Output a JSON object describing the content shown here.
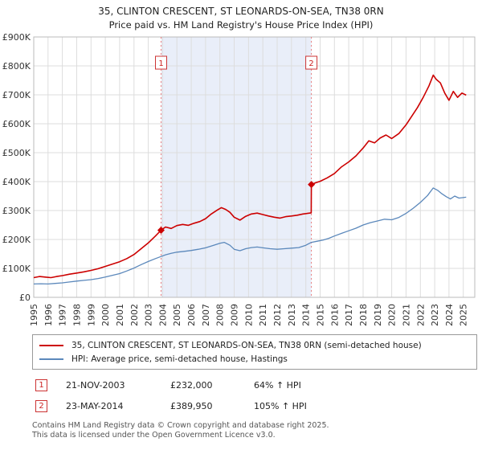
{
  "header": {
    "title": "35, CLINTON CRESCENT, ST LEONARDS-ON-SEA, TN38 0RN",
    "subtitle": "Price paid vs. HM Land Registry's House Price Index (HPI)"
  },
  "chart_data": {
    "type": "line",
    "title": "35, CLINTON CRESCENT, ST LEONARDS-ON-SEA, TN38 0RN — Price paid vs. HPI",
    "xlabel": "",
    "ylabel": "",
    "xlim": [
      1995,
      2025.8
    ],
    "ylim": [
      0,
      900000
    ],
    "grid": true,
    "legend_position": "bottom",
    "x_ticks": [
      1995,
      1996,
      1997,
      1998,
      1999,
      2000,
      2001,
      2002,
      2003,
      2004,
      2005,
      2006,
      2007,
      2008,
      2009,
      2010,
      2011,
      2012,
      2013,
      2014,
      2015,
      2016,
      2017,
      2018,
      2019,
      2020,
      2021,
      2022,
      2023,
      2024,
      2025
    ],
    "ytick_values": [
      0,
      100000,
      200000,
      300000,
      400000,
      500000,
      600000,
      700000,
      800000,
      900000
    ],
    "ytick_labels": [
      "£0",
      "£100K",
      "£200K",
      "£300K",
      "£400K",
      "£500K",
      "£600K",
      "£700K",
      "£800K",
      "£900K"
    ],
    "shaded_region": {
      "from": 2003.89,
      "to": 2014.39,
      "color": "#e9eef9"
    },
    "grid_color": "#dddddd",
    "border_color": "#bbbbbb",
    "marker_line_color": "#e87e7e",
    "series": [
      {
        "name": "35, CLINTON CRESCENT, ST LEONARDS-ON-SEA, TN38 0RN (semi-detached house)",
        "color": "#cc0000",
        "width": 1.6,
        "points": [
          [
            1995,
            68000
          ],
          [
            1995.4,
            72000
          ],
          [
            1995.8,
            70000
          ],
          [
            1996.2,
            68000
          ],
          [
            1996.6,
            72000
          ],
          [
            1997,
            75000
          ],
          [
            1997.5,
            80000
          ],
          [
            1998,
            84000
          ],
          [
            1998.5,
            88000
          ],
          [
            1999,
            93000
          ],
          [
            1999.5,
            99000
          ],
          [
            2000,
            107000
          ],
          [
            2000.5,
            115000
          ],
          [
            2001,
            123000
          ],
          [
            2001.5,
            134000
          ],
          [
            2002,
            148000
          ],
          [
            2002.5,
            168000
          ],
          [
            2003,
            188000
          ],
          [
            2003.5,
            212000
          ],
          [
            2003.89,
            232000
          ],
          [
            2004.2,
            243000
          ],
          [
            2004.6,
            238000
          ],
          [
            2005,
            248000
          ],
          [
            2005.4,
            252000
          ],
          [
            2005.8,
            249000
          ],
          [
            2006.2,
            256000
          ],
          [
            2006.6,
            262000
          ],
          [
            2007,
            272000
          ],
          [
            2007.4,
            288000
          ],
          [
            2007.8,
            301000
          ],
          [
            2008.1,
            310000
          ],
          [
            2008.4,
            304000
          ],
          [
            2008.7,
            294000
          ],
          [
            2009,
            277000
          ],
          [
            2009.4,
            267000
          ],
          [
            2009.8,
            280000
          ],
          [
            2010.2,
            288000
          ],
          [
            2010.6,
            291000
          ],
          [
            2011,
            286000
          ],
          [
            2011.4,
            281000
          ],
          [
            2011.8,
            277000
          ],
          [
            2012.2,
            274000
          ],
          [
            2012.6,
            279000
          ],
          [
            2013,
            281000
          ],
          [
            2013.4,
            284000
          ],
          [
            2013.8,
            288000
          ],
          [
            2014.1,
            290000
          ],
          [
            2014.38,
            292000
          ],
          [
            2014.39,
            389950
          ],
          [
            2014.7,
            396000
          ],
          [
            2015,
            401000
          ],
          [
            2015.5,
            413000
          ],
          [
            2016,
            428000
          ],
          [
            2016.5,
            451000
          ],
          [
            2017,
            468000
          ],
          [
            2017.5,
            489000
          ],
          [
            2018,
            516000
          ],
          [
            2018.4,
            541000
          ],
          [
            2018.8,
            534000
          ],
          [
            2019.2,
            551000
          ],
          [
            2019.6,
            561000
          ],
          [
            2020,
            549000
          ],
          [
            2020.5,
            566000
          ],
          [
            2021,
            596000
          ],
          [
            2021.4,
            626000
          ],
          [
            2021.8,
            656000
          ],
          [
            2022.2,
            691000
          ],
          [
            2022.6,
            731000
          ],
          [
            2022.9,
            768000
          ],
          [
            2023.1,
            754000
          ],
          [
            2023.4,
            741000
          ],
          [
            2023.7,
            706000
          ],
          [
            2024,
            681000
          ],
          [
            2024.3,
            712000
          ],
          [
            2024.6,
            691000
          ],
          [
            2024.9,
            706000
          ],
          [
            2025.2,
            699000
          ]
        ]
      },
      {
        "name": "HPI: Average price, semi-detached house, Hastings",
        "color": "#5b88bb",
        "width": 1.3,
        "points": [
          [
            1995,
            46000
          ],
          [
            1995.5,
            47000
          ],
          [
            1996,
            46000
          ],
          [
            1996.5,
            48000
          ],
          [
            1997,
            50000
          ],
          [
            1997.5,
            53000
          ],
          [
            1998,
            56000
          ],
          [
            1998.5,
            58500
          ],
          [
            1999,
            61000
          ],
          [
            1999.5,
            65000
          ],
          [
            2000,
            70000
          ],
          [
            2000.5,
            76000
          ],
          [
            2001,
            82000
          ],
          [
            2001.5,
            91000
          ],
          [
            2002,
            101000
          ],
          [
            2002.5,
            113000
          ],
          [
            2003,
            124000
          ],
          [
            2003.5,
            134000
          ],
          [
            2003.89,
            141000
          ],
          [
            2004.2,
            147000
          ],
          [
            2004.6,
            152000
          ],
          [
            2005,
            156000
          ],
          [
            2005.5,
            159000
          ],
          [
            2006,
            162000
          ],
          [
            2006.5,
            166000
          ],
          [
            2007,
            171000
          ],
          [
            2007.5,
            179000
          ],
          [
            2008,
            187000
          ],
          [
            2008.3,
            190000
          ],
          [
            2008.7,
            180000
          ],
          [
            2009,
            166000
          ],
          [
            2009.4,
            161000
          ],
          [
            2009.8,
            168000
          ],
          [
            2010.2,
            172000
          ],
          [
            2010.6,
            174000
          ],
          [
            2011,
            171000
          ],
          [
            2011.5,
            168000
          ],
          [
            2012,
            166000
          ],
          [
            2012.5,
            168000
          ],
          [
            2013,
            170000
          ],
          [
            2013.5,
            172000
          ],
          [
            2014,
            180000
          ],
          [
            2014.39,
            190000
          ],
          [
            2014.8,
            194000
          ],
          [
            2015.2,
            198000
          ],
          [
            2015.6,
            204000
          ],
          [
            2016,
            212000
          ],
          [
            2016.5,
            221000
          ],
          [
            2017,
            230000
          ],
          [
            2017.5,
            239000
          ],
          [
            2018,
            250000
          ],
          [
            2018.5,
            258000
          ],
          [
            2019,
            264000
          ],
          [
            2019.5,
            270000
          ],
          [
            2020,
            268000
          ],
          [
            2020.5,
            276000
          ],
          [
            2021,
            290000
          ],
          [
            2021.5,
            308000
          ],
          [
            2022,
            328000
          ],
          [
            2022.5,
            352000
          ],
          [
            2022.9,
            378000
          ],
          [
            2023.2,
            370000
          ],
          [
            2023.5,
            358000
          ],
          [
            2023.8,
            348000
          ],
          [
            2024.1,
            340000
          ],
          [
            2024.4,
            350000
          ],
          [
            2024.7,
            343000
          ],
          [
            2025.2,
            346000
          ]
        ]
      }
    ],
    "sale_markers": [
      {
        "label": "1",
        "x": 2003.89,
        "y": 232000
      },
      {
        "label": "2",
        "x": 2014.39,
        "y": 389950
      }
    ]
  },
  "legend": {
    "items": [
      {
        "label": "35, CLINTON CRESCENT, ST LEONARDS-ON-SEA, TN38 0RN (semi-detached house)",
        "color": "#cc0000"
      },
      {
        "label": "HPI: Average price, semi-detached house, Hastings",
        "color": "#5b88bb"
      }
    ]
  },
  "transactions": [
    {
      "num": "1",
      "date": "21-NOV-2003",
      "price": "£232,000",
      "hpi_change": "64% ↑ HPI"
    },
    {
      "num": "2",
      "date": "23-MAY-2014",
      "price": "£389,950",
      "hpi_change": "105% ↑ HPI"
    }
  ],
  "footer": {
    "line1": "Contains HM Land Registry data © Crown copyright and database right 2025.",
    "line2": "This data is licensed under the Open Government Licence v3.0."
  }
}
